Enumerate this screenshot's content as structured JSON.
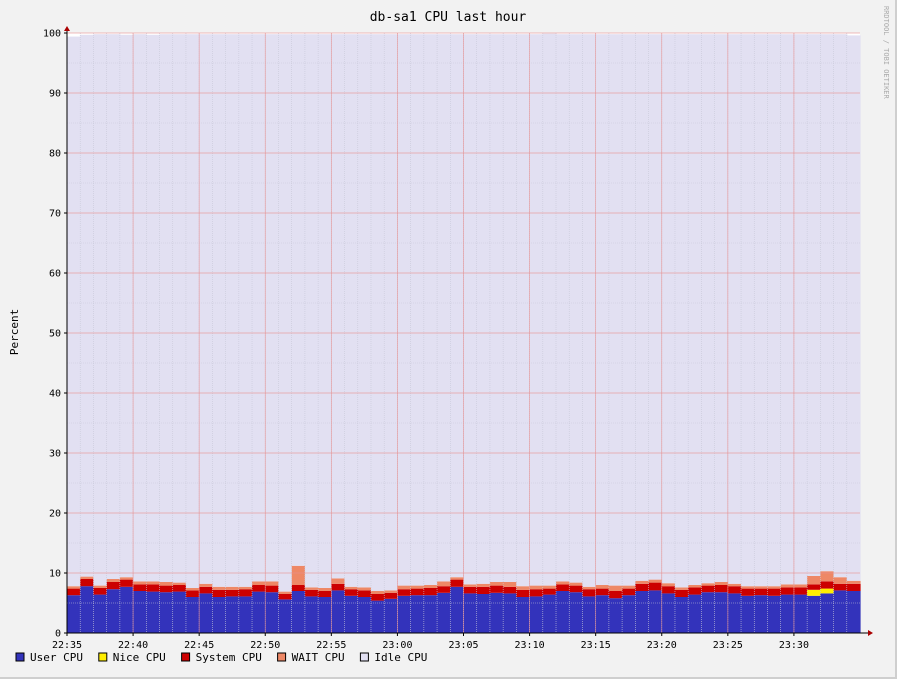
{
  "chart_data": {
    "type": "area",
    "title": "db-sa1 CPU last hour",
    "ylabel": "Percent",
    "xlabel": "",
    "watermark": "RRDTOOL / TOBI OETIKER",
    "ylim": [
      0,
      100
    ],
    "y_ticks": [
      0,
      10,
      20,
      30,
      40,
      50,
      60,
      70,
      80,
      90,
      100
    ],
    "x_ticks": [
      "22:35",
      "22:40",
      "22:45",
      "22:50",
      "22:55",
      "23:00",
      "23:05",
      "23:10",
      "23:15",
      "23:20",
      "23:25",
      "23:30"
    ],
    "stacked": true,
    "grid": true,
    "legend_position": "bottom",
    "x": [
      "22:35",
      "22:36",
      "22:37",
      "22:38",
      "22:39",
      "22:40",
      "22:41",
      "22:42",
      "22:43",
      "22:44",
      "22:45",
      "22:46",
      "22:47",
      "22:48",
      "22:49",
      "22:50",
      "22:51",
      "22:52",
      "22:53",
      "22:54",
      "22:55",
      "22:56",
      "22:57",
      "22:58",
      "22:59",
      "23:00",
      "23:01",
      "23:02",
      "23:03",
      "23:04",
      "23:05",
      "23:06",
      "23:07",
      "23:08",
      "23:09",
      "23:10",
      "23:11",
      "23:12",
      "23:13",
      "23:14",
      "23:15",
      "23:16",
      "23:17",
      "23:18",
      "23:19",
      "23:20",
      "23:21",
      "23:22",
      "23:23",
      "23:24",
      "23:25",
      "23:26",
      "23:27",
      "23:28",
      "23:29",
      "23:30",
      "23:31",
      "23:32",
      "23:33",
      "23:34"
    ],
    "series": [
      {
        "name": "User CPU",
        "color": "#3333bb",
        "values": [
          6.3,
          7.8,
          6.4,
          7.3,
          7.7,
          7.0,
          6.9,
          6.8,
          6.9,
          6.0,
          6.6,
          6.0,
          6.1,
          6.1,
          6.9,
          6.8,
          5.6,
          7.0,
          6.1,
          6.0,
          7.1,
          6.2,
          6.0,
          5.4,
          5.7,
          6.2,
          6.3,
          6.3,
          6.7,
          7.7,
          6.6,
          6.5,
          6.7,
          6.6,
          6.0,
          6.1,
          6.4,
          7.0,
          6.8,
          6.1,
          6.3,
          5.8,
          6.3,
          7.0,
          7.1,
          6.6,
          6.0,
          6.4,
          6.8,
          6.8,
          6.6,
          6.2,
          6.3,
          6.2,
          6.4,
          6.4,
          6.2,
          6.6,
          7.1,
          7.0
        ]
      },
      {
        "name": "Nice CPU",
        "color": "#ffee00",
        "values": [
          0,
          0,
          0,
          0,
          0,
          0,
          0,
          0,
          0,
          0,
          0,
          0,
          0,
          0,
          0,
          0,
          0,
          0,
          0,
          0,
          0,
          0,
          0,
          0,
          0,
          0,
          0,
          0,
          0,
          0,
          0,
          0,
          0,
          0,
          0,
          0,
          0,
          0,
          0,
          0,
          0,
          0,
          0,
          0,
          0,
          0,
          0,
          0,
          0,
          0,
          0,
          0,
          0,
          0,
          0,
          0,
          1.0,
          0.8,
          0,
          0
        ]
      },
      {
        "name": "System CPU",
        "color": "#cc0000",
        "values": [
          1.1,
          1.2,
          1.1,
          1.2,
          1.2,
          1.1,
          1.2,
          1.1,
          1.1,
          1.1,
          1.1,
          1.2,
          1.1,
          1.2,
          1.1,
          1.1,
          0.9,
          1.0,
          1.1,
          1.0,
          1.1,
          1.1,
          1.1,
          1.1,
          1.0,
          1.1,
          1.1,
          1.2,
          1.1,
          1.2,
          1.1,
          1.2,
          1.2,
          1.1,
          1.2,
          1.2,
          1.0,
          1.1,
          1.1,
          1.2,
          1.1,
          1.2,
          1.1,
          1.2,
          1.3,
          1.2,
          1.2,
          1.2,
          1.1,
          1.2,
          1.2,
          1.2,
          1.1,
          1.2,
          1.2,
          1.2,
          0.9,
          1.2,
          1.1,
          1.2
        ]
      },
      {
        "name": "WAIT CPU",
        "color": "#ee8866",
        "values": [
          0.4,
          0.4,
          0.4,
          0.5,
          0.4,
          0.5,
          0.5,
          0.6,
          0.4,
          0.4,
          0.5,
          0.5,
          0.5,
          0.4,
          0.6,
          0.7,
          0.4,
          3.2,
          0.4,
          0.5,
          0.9,
          0.4,
          0.5,
          0.5,
          0.4,
          0.6,
          0.5,
          0.5,
          0.8,
          0.4,
          0.4,
          0.5,
          0.6,
          0.8,
          0.6,
          0.6,
          0.5,
          0.5,
          0.5,
          0.4,
          0.6,
          0.9,
          0.5,
          0.5,
          0.5,
          0.5,
          0.4,
          0.4,
          0.4,
          0.5,
          0.4,
          0.4,
          0.4,
          0.4,
          0.5,
          0.5,
          1.4,
          1.7,
          1.1,
          0.5
        ]
      },
      {
        "name": "Idle CPU",
        "color": "#e2e0f2",
        "values": [
          91.6,
          90.3,
          91.9,
          90.8,
          90.4,
          91.2,
          91.1,
          91.3,
          91.4,
          92.3,
          91.6,
          92.1,
          92.1,
          92.1,
          91.2,
          91.2,
          92.9,
          88.6,
          92.2,
          92.3,
          90.7,
          92.1,
          92.2,
          92.8,
          92.7,
          91.9,
          91.9,
          91.8,
          91.2,
          90.5,
          91.7,
          91.6,
          91.3,
          91.3,
          92.0,
          91.9,
          92.0,
          91.2,
          91.4,
          92.1,
          91.8,
          91.9,
          91.9,
          91.1,
          90.9,
          91.5,
          92.2,
          91.8,
          91.5,
          91.3,
          91.6,
          92.0,
          92.0,
          92.0,
          91.7,
          91.7,
          90.3,
          89.5,
          90.5,
          90.9
        ]
      }
    ]
  }
}
